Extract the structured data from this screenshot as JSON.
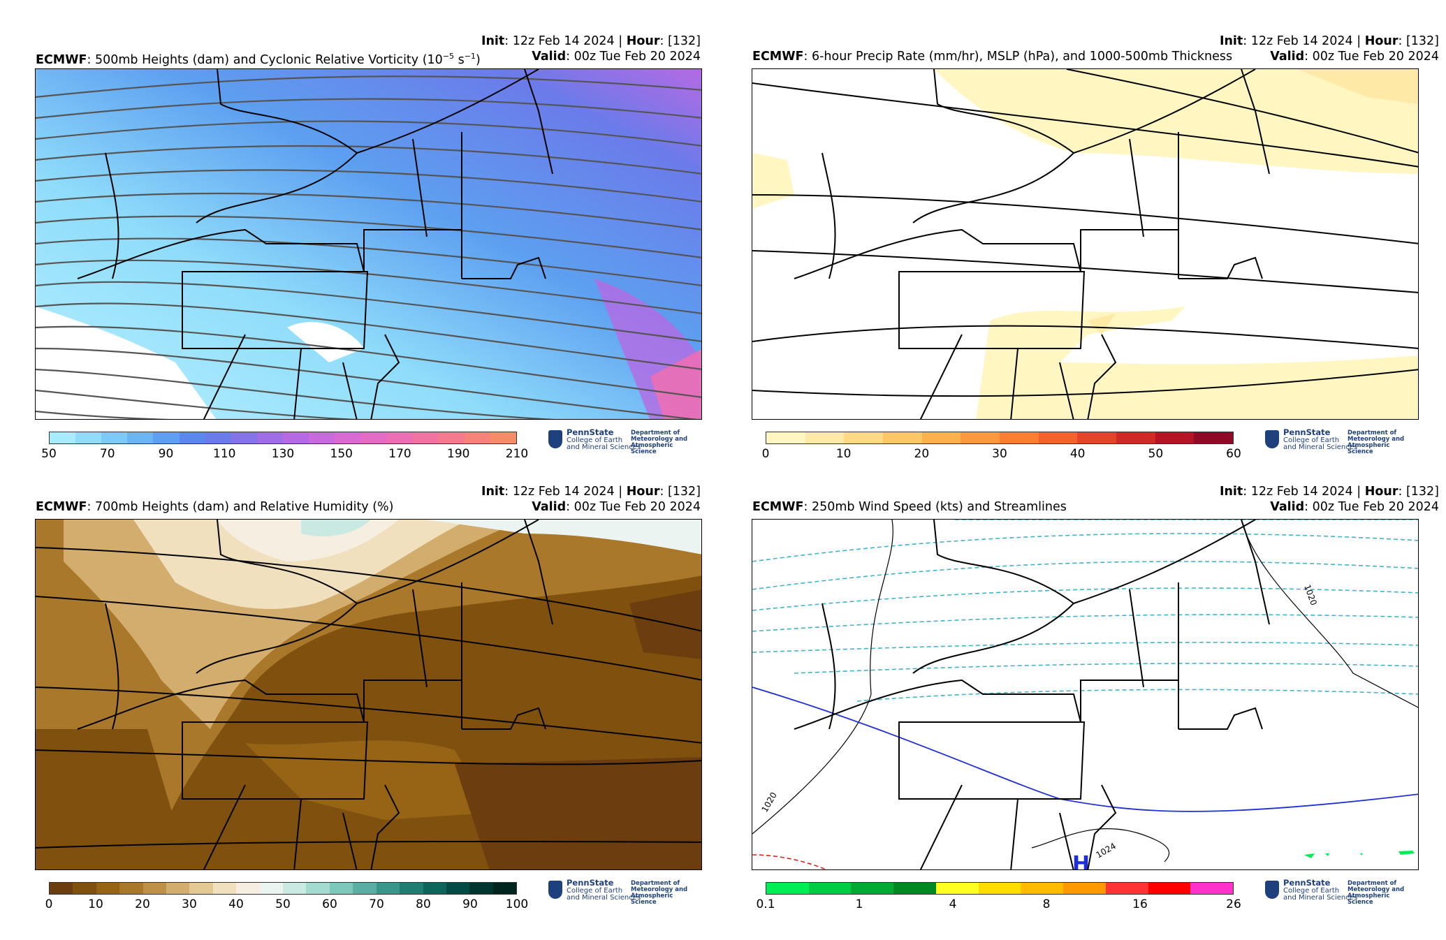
{
  "panels": [
    {
      "model": "ECMWF",
      "title_rest": ": 500mb Heights (dam) and Cyclonic Relative Vorticity (10",
      "title_sup1": "−5",
      "title_mid": " s",
      "title_sup2": "−1",
      "title_end": ")",
      "init_label": "Init",
      "init_value": ": 12z Feb 14 2024 | ",
      "hour_label": "Hour",
      "hour_value": ": [132]",
      "valid_label": "Valid",
      "valid_value": ": 00z Tue Feb 20 2024",
      "colorbar_ticks": [
        "50",
        "70",
        "90",
        "110",
        "130",
        "150",
        "170",
        "190",
        "210"
      ],
      "colorbar_colors": [
        "#a6ecfd",
        "#8fdcfb",
        "#7ccaf8",
        "#6ab6f4",
        "#5d9ff0",
        "#5a88ec",
        "#6b7bea",
        "#8573e8",
        "#9f6ee6",
        "#b56ae3",
        "#c869dd",
        "#d96ad4",
        "#e36cc6",
        "#ec6fb5",
        "#f173a2",
        "#f47a8d",
        "#f5837a",
        "#f48d67"
      ]
    },
    {
      "model": "ECMWF",
      "title_rest": ": 6-hour Precip Rate (mm/hr), MSLP (hPa), and 1000-500mb Thickness",
      "init_label": "Init",
      "init_value": ": 12z Feb 14 2024 | ",
      "hour_label": "Hour",
      "hour_value": ": [132]",
      "valid_label": "Valid",
      "valid_value": ": 00z Tue Feb 20 2024",
      "colorbar_ticks": [
        "0",
        "10",
        "20",
        "30",
        "40",
        "50",
        "60"
      ],
      "colorbar_colors": [
        "#fff6c2",
        "#ffe9a6",
        "#ffd985",
        "#fec666",
        "#fdb04e",
        "#fc983e",
        "#fa7f33",
        "#f3622c",
        "#e44528",
        "#d02a24",
        "#b51424",
        "#8f0a26"
      ]
    },
    {
      "model": "ECMWF",
      "title_rest": ": 700mb Heights (dam) and Relative Humidity (%)",
      "init_label": "Init",
      "init_value": ": 12z Feb 14 2024 | ",
      "hour_label": "Hour",
      "hour_value": ": [132]",
      "valid_label": "Valid",
      "valid_value": ": 00z Tue Feb 20 2024",
      "colorbar_ticks": [
        "0",
        "10",
        "20",
        "30",
        "40",
        "50",
        "60",
        "70",
        "80",
        "90",
        "100"
      ],
      "colorbar_colors": [
        "#6b3d0f",
        "#80500f",
        "#966414",
        "#a9782a",
        "#bf9048",
        "#d3ad6e",
        "#e4c994",
        "#f1e0bd",
        "#f6eee0",
        "#ecf4f1",
        "#cbe9e3",
        "#a3dbd1",
        "#7ec7bb",
        "#5aaea3",
        "#3a958a",
        "#1f7d72",
        "#0d655c",
        "#034b44",
        "#01352f",
        "#00251f"
      ]
    },
    {
      "model": "ECMWF",
      "title_rest": ": 250mb Wind Speed (kts) and Streamlines",
      "init_label": "Init",
      "init_value": ": 12z Feb 14 2024 | ",
      "hour_label": "Hour",
      "hour_value": ": [132]",
      "valid_label": "Valid",
      "valid_value": ": 00z Tue Feb 20 2024",
      "colorbar_ticks": [
        "0.1",
        "1",
        "4",
        "8",
        "16",
        "26"
      ],
      "colorbar_colors": [
        "#00ee55",
        "#00cc44",
        "#00aa33",
        "#008822",
        "#ffff22",
        "#ffdd00",
        "#ffbb00",
        "#ff9900",
        "#ff3333",
        "#ff0000",
        "#ff33cc"
      ],
      "contour_labels": [
        "1020",
        "1020",
        "1024"
      ],
      "high_label": "H"
    }
  ],
  "logo": {
    "org": "PennState",
    "org_line2": "College of Earth",
    "org_line3": "and Mineral Sciences",
    "dept_line1": "Department of",
    "dept_line2": "Meteorology and",
    "dept_line3": "Atmospheric Science"
  }
}
